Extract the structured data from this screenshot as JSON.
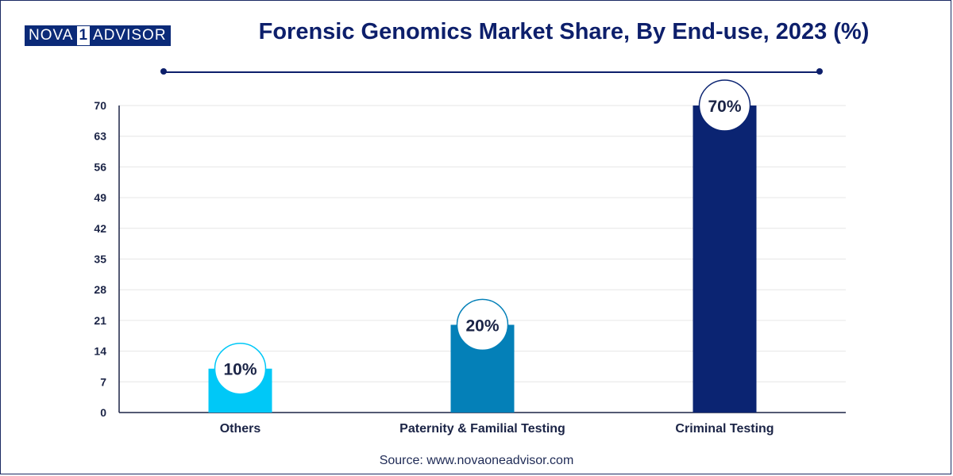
{
  "brand": {
    "part1": "NOVA",
    "part2": "1",
    "part3": "ADVISOR"
  },
  "chart_data": {
    "type": "bar",
    "title": "Forensic Genomics Market Share, By End-use, 2023 (%)",
    "categories": [
      "Others",
      "Paternity & Familial Testing",
      "Criminal Testing"
    ],
    "values": [
      10,
      20,
      70
    ],
    "data_labels": [
      "10%",
      "20%",
      "70%"
    ],
    "colors": [
      "#00c8f7",
      "#0480b8",
      "#0b2472"
    ],
    "ylim": [
      0,
      70
    ],
    "yticks": [
      0,
      7,
      14,
      21,
      28,
      35,
      42,
      49,
      56,
      63,
      70
    ],
    "grid": true
  },
  "source": "Source: www.novaoneadvisor.com"
}
